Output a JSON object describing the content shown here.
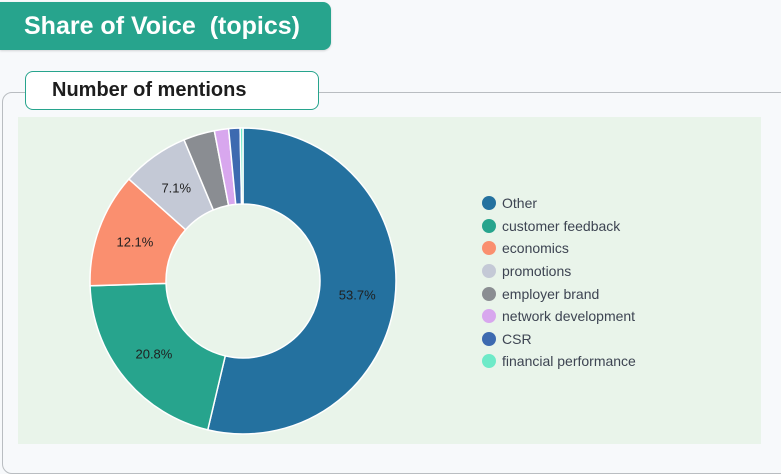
{
  "header": {
    "title": "Share of Voice  (topics)"
  },
  "panel": {
    "title": "Number of mentions"
  },
  "chart_data": {
    "type": "pie",
    "donut": true,
    "title": "Number of mentions",
    "categories": [
      "Other",
      "customer feedback",
      "economics",
      "promotions",
      "employer brand",
      "network development",
      "CSR",
      "financial performance"
    ],
    "values": [
      53.7,
      20.8,
      12.1,
      7.1,
      3.3,
      1.5,
      1.2,
      0.3
    ],
    "value_labels": [
      "53.7%",
      "20.8%",
      "12.1%",
      "7.1%",
      "",
      "",
      "",
      ""
    ],
    "colors": [
      "#24719f",
      "#27a48d",
      "#fa8f6f",
      "#c4c9d6",
      "#8a8d92",
      "#d8a7ee",
      "#3d6ab0",
      "#6eeac8"
    ],
    "legend_position": "right"
  }
}
